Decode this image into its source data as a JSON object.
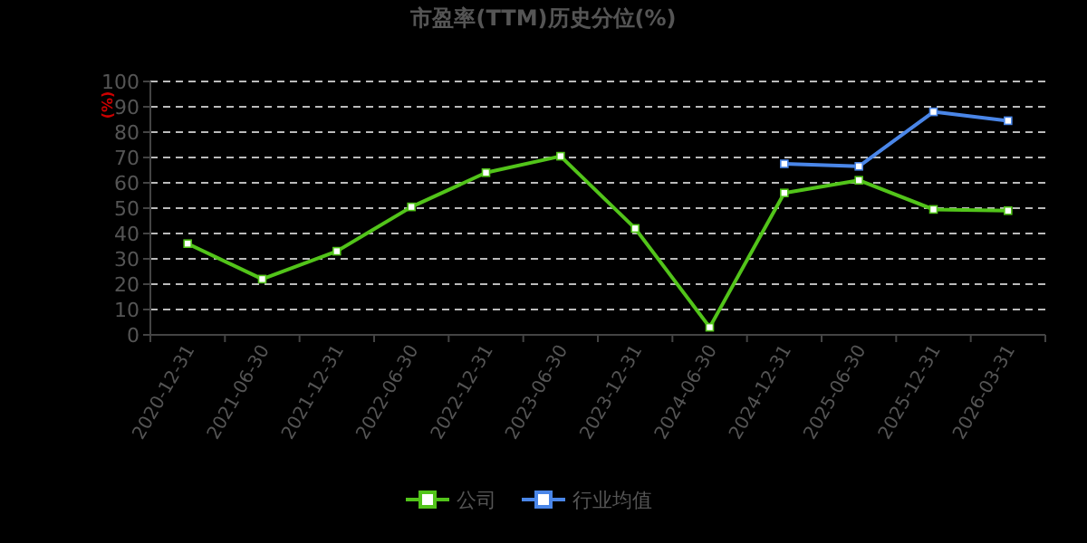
{
  "chart_data": {
    "type": "line",
    "title": "市盈率(TTM)历史分位(%)",
    "ylabel": "(%)",
    "categories": [
      "2020-12-31",
      "2021-06-30",
      "2021-12-31",
      "2022-06-30",
      "2022-12-31",
      "2023-06-30",
      "2023-12-31",
      "2024-06-30",
      "2024-12-31",
      "2025-06-30",
      "2025-12-31",
      "2026-03-31"
    ],
    "series": [
      {
        "name": "公司",
        "color": "#52c41a",
        "values": [
          36,
          22,
          33,
          50.5,
          64,
          70.5,
          42,
          3,
          56,
          61,
          49.5,
          49
        ]
      },
      {
        "name": "行业均值",
        "color": "#4a86e8",
        "values": [
          null,
          null,
          null,
          null,
          null,
          null,
          null,
          null,
          67.5,
          66.5,
          88,
          84.5
        ]
      }
    ],
    "ylim": [
      0,
      100
    ],
    "yticks": [
      0,
      10,
      20,
      30,
      40,
      50,
      60,
      70,
      80,
      90,
      100
    ],
    "grid": "y",
    "legend": "bottom",
    "marker": "square",
    "line_style": "solid"
  }
}
